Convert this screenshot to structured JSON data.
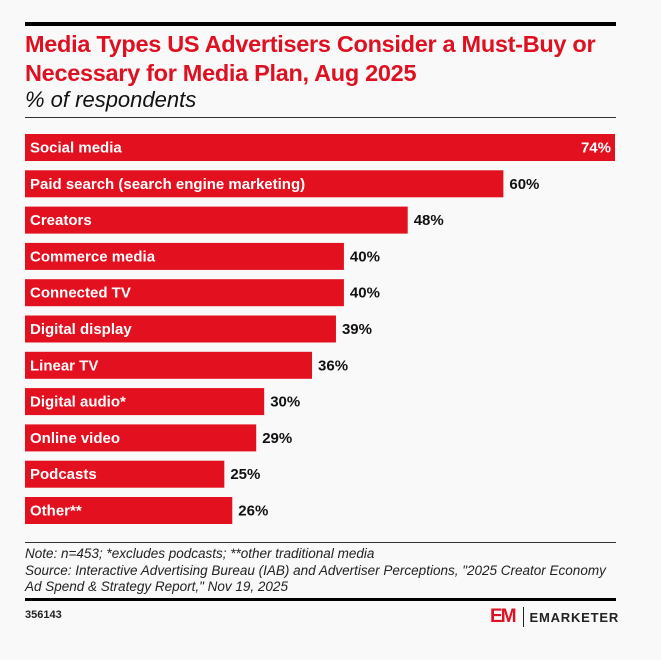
{
  "header": {
    "title": "Media Types US Advertisers Consider a Must-Buy or Necessary for Media Plan, Aug 2025",
    "subtitle": "% of respondents"
  },
  "chart_data": {
    "type": "bar",
    "orientation": "horizontal",
    "title": "Media Types US Advertisers Consider a Must-Buy or Necessary for Media Plan, Aug 2025",
    "subtitle": "% of respondents",
    "categories": [
      "Social media",
      "Paid search (search engine marketing)",
      "Creators",
      "Commerce media",
      "Connected TV",
      "Digital display",
      "Linear TV",
      "Digital audio*",
      "Online video",
      "Podcasts",
      "Other**"
    ],
    "values": [
      74,
      60,
      48,
      40,
      40,
      39,
      36,
      30,
      29,
      25,
      26
    ],
    "value_labels": [
      "74%",
      "60%",
      "48%",
      "40%",
      "40%",
      "39%",
      "36%",
      "30%",
      "29%",
      "25%",
      "26%"
    ],
    "unit": "%",
    "grid": false,
    "bar_color": "#e3101f"
  },
  "footer": {
    "note": "Note: n=453; *excludes podcasts; **other traditional media",
    "source": "Source: Interactive Advertising Bureau (IAB) and Advertiser Perceptions, \"2025 Creator Economy Ad Spend & Strategy Report,\" Nov 19, 2025",
    "chart_id": "356143",
    "logo_mark": "EM",
    "logo_text": "EMARKETER"
  }
}
